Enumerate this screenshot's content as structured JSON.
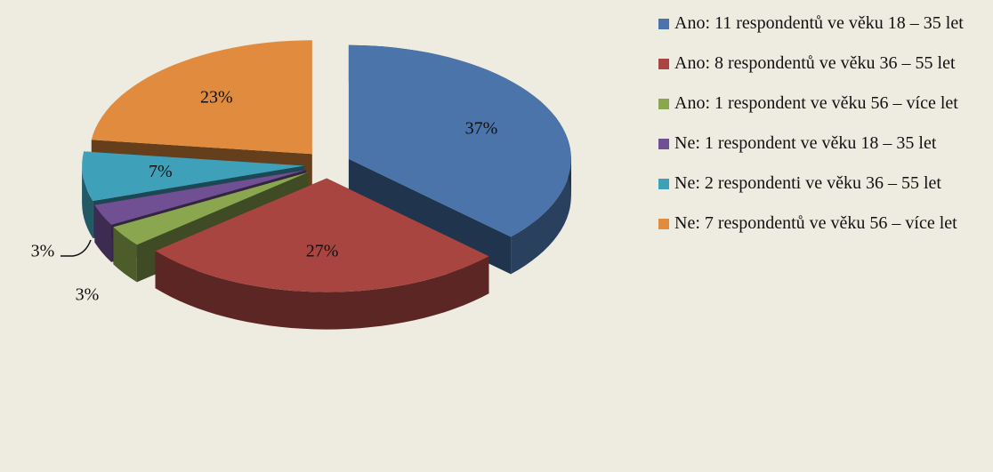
{
  "chart_data": {
    "type": "pie3d",
    "categories": [
      "Ano: 11 respondentů ve věku 18 – 35 let",
      "Ano: 8 respondentů ve věku 36 – 55 let",
      "Ano: 1 respondent ve věku 56 – více let",
      "Ne: 1 respondent ve věku 18 – 35 let",
      "Ne: 2 respondenti ve věku 36 – 55 let",
      "Ne: 7 respondentů ve věku 56 – více let"
    ],
    "values": [
      37,
      27,
      3,
      3,
      7,
      23
    ],
    "value_labels": [
      "37%",
      "27%",
      "3%",
      "3%",
      "7%",
      "23%"
    ],
    "colors": [
      "#4a74aa",
      "#a84541",
      "#8aa74f",
      "#714f93",
      "#3fa0b9",
      "#e08b3e"
    ],
    "legend": "right"
  }
}
